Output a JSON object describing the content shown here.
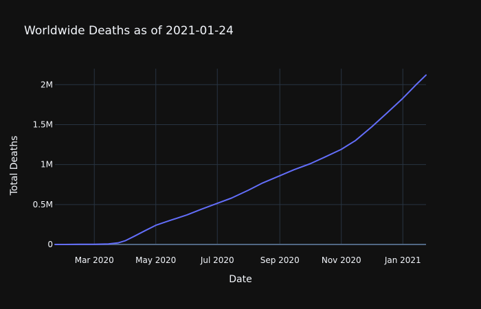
{
  "chart_data": {
    "type": "line",
    "title": "Worldwide Deaths as of 2021-01-24",
    "xlabel": "Date",
    "ylabel": "Total Deaths",
    "xlim": [
      "2020-01-22",
      "2021-01-24"
    ],
    "ylim": [
      0,
      2200000
    ],
    "x_ticks": [
      {
        "value": "2020-03-01",
        "label": "Mar 2020"
      },
      {
        "value": "2020-05-01",
        "label": "May 2020"
      },
      {
        "value": "2020-07-01",
        "label": "Jul 2020"
      },
      {
        "value": "2020-09-01",
        "label": "Sep 2020"
      },
      {
        "value": "2020-11-01",
        "label": "Nov 2020"
      },
      {
        "value": "2021-01-01",
        "label": "Jan 2021"
      }
    ],
    "y_ticks": [
      {
        "value": 0,
        "label": "0"
      },
      {
        "value": 500000,
        "label": "0.5M"
      },
      {
        "value": 1000000,
        "label": "1M"
      },
      {
        "value": 1500000,
        "label": "1.5M"
      },
      {
        "value": 2000000,
        "label": "2M"
      }
    ],
    "grid": true,
    "legend": "none",
    "series": [
      {
        "color": "#636efa",
        "x": [
          "2020-01-22",
          "2020-02-01",
          "2020-02-15",
          "2020-03-01",
          "2020-03-15",
          "2020-03-25",
          "2020-04-01",
          "2020-04-10",
          "2020-04-20",
          "2020-05-01",
          "2020-05-15",
          "2020-06-01",
          "2020-06-15",
          "2020-07-01",
          "2020-07-15",
          "2020-08-01",
          "2020-08-15",
          "2020-09-01",
          "2020-09-15",
          "2020-10-01",
          "2020-10-15",
          "2020-11-01",
          "2020-11-15",
          "2020-12-01",
          "2020-12-15",
          "2021-01-01",
          "2021-01-15",
          "2021-01-24"
        ],
        "values": [
          20,
          260,
          1600,
          3000,
          6500,
          21000,
          48000,
          105000,
          170000,
          240000,
          300000,
          370000,
          440000,
          515000,
          580000,
          680000,
          770000,
          860000,
          935000,
          1010000,
          1090000,
          1190000,
          1300000,
          1470000,
          1630000,
          1830000,
          2010000,
          2120000
        ]
      }
    ]
  }
}
